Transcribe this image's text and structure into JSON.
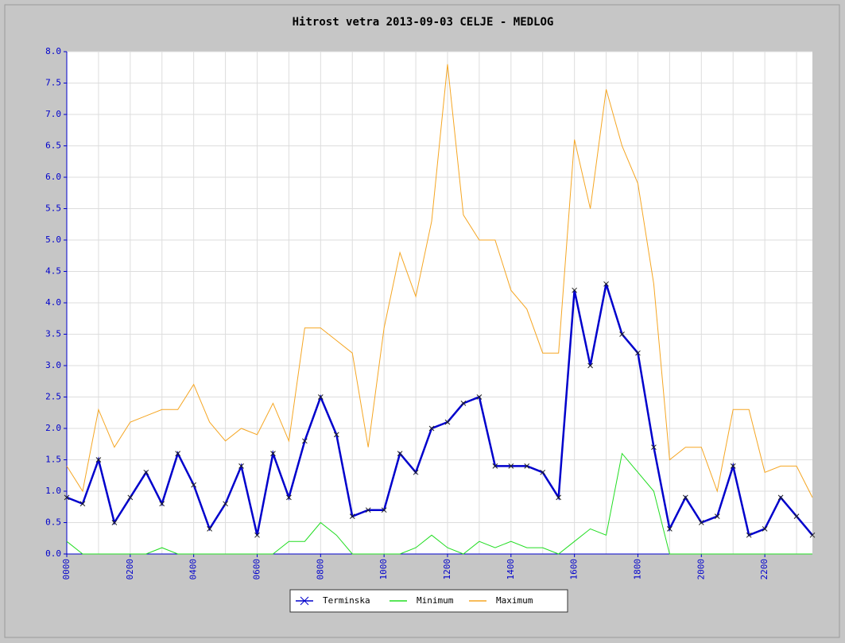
{
  "chart_data": {
    "type": "line",
    "title": "Hitrost vetra 2013-09-03 CELJE - MEDLOG",
    "categories": [
      "0000",
      null,
      null,
      null,
      "0200",
      null,
      null,
      null,
      "0400",
      null,
      null,
      null,
      "0600",
      null,
      null,
      null,
      "0800",
      null,
      null,
      null,
      "1000",
      null,
      null,
      null,
      "1200",
      null,
      null,
      null,
      "1400",
      null,
      null,
      null,
      "1600",
      null,
      null,
      null,
      "1800",
      null,
      null,
      null,
      "2000",
      null,
      null,
      null,
      "2200",
      null,
      null,
      null
    ],
    "series": [
      {
        "name": "Terminska",
        "color": "#0000cc",
        "marker": true,
        "values": [
          0.9,
          0.8,
          1.5,
          0.5,
          0.9,
          1.3,
          0.8,
          1.6,
          1.1,
          0.4,
          0.8,
          1.4,
          0.3,
          1.6,
          0.9,
          1.8,
          2.5,
          1.9,
          0.6,
          0.7,
          0.7,
          1.6,
          1.3,
          2.0,
          2.1,
          2.4,
          2.5,
          1.4,
          1.4,
          1.4,
          1.3,
          0.9,
          4.2,
          3.0,
          4.3,
          3.5,
          3.2,
          1.7,
          0.4,
          0.9,
          0.5,
          0.6,
          1.4,
          0.3,
          0.4,
          0.9,
          0.6,
          0.3
        ]
      },
      {
        "name": "Minimum",
        "color": "#22dd22",
        "marker": false,
        "values": [
          0.2,
          0,
          0,
          0,
          0,
          0,
          0.1,
          0,
          0,
          0,
          0,
          0,
          0,
          0,
          0.2,
          0.2,
          0.5,
          0.3,
          0,
          0,
          0,
          0,
          0.1,
          0.3,
          0.1,
          0,
          0.2,
          0.1,
          0.2,
          0.1,
          0.1,
          0,
          0.2,
          0.4,
          0.3,
          1.6,
          1.3,
          1.0,
          0,
          0,
          0,
          0,
          0,
          0,
          0,
          0,
          0,
          0
        ]
      },
      {
        "name": "Maximum",
        "color": "#f5a623",
        "marker": false,
        "values": [
          1.4,
          1.0,
          2.3,
          1.7,
          2.1,
          2.2,
          2.3,
          2.3,
          2.7,
          2.1,
          1.8,
          2.0,
          1.9,
          2.4,
          1.8,
          3.6,
          3.6,
          3.4,
          3.2,
          1.7,
          3.6,
          4.8,
          4.1,
          5.3,
          7.8,
          5.4,
          5.0,
          5.0,
          4.2,
          3.9,
          3.2,
          3.2,
          6.6,
          5.5,
          7.4,
          6.5,
          5.9,
          4.3,
          1.5,
          1.7,
          1.7,
          1.0,
          2.3,
          2.3,
          1.3,
          1.4,
          1.4,
          0.9
        ]
      }
    ],
    "ylim": [
      0,
      8
    ],
    "yticks": [
      {
        "value": 0,
        "label": "0.0"
      },
      0.5,
      {
        "value": 1,
        "label": "1.0"
      },
      1.5,
      {
        "value": 2,
        "label": "2.0"
      },
      2.5,
      {
        "value": 3,
        "label": "3.0"
      },
      3.5,
      {
        "value": 4,
        "label": "4.0"
      },
      4.5,
      {
        "value": 5,
        "label": "5.0"
      },
      5.5,
      {
        "value": 6,
        "label": "6.0"
      },
      6.5,
      {
        "value": 7,
        "label": "7.0"
      },
      7.5,
      {
        "value": 8,
        "label": "8.0"
      }
    ],
    "grid": true
  }
}
